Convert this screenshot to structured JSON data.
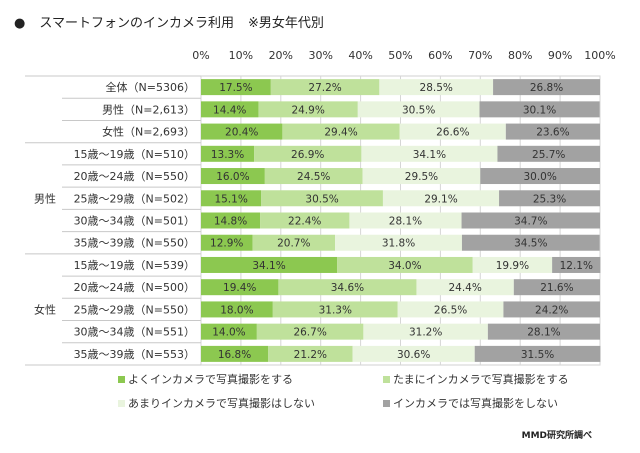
{
  "chart_data": {
    "type": "bar",
    "orientation": "horizontal",
    "stacked": true,
    "percent": true,
    "title": "スマートフォンのインカメラ利用",
    "subtitle": "※男女年代別",
    "title_bullet": "●",
    "xlim": [
      0,
      100
    ],
    "ticks": [
      "0%",
      "10%",
      "20%",
      "30%",
      "40%",
      "50%",
      "60%",
      "70%",
      "80%",
      "90%",
      "100%"
    ],
    "grid": true,
    "legend_placement": "bottom",
    "groups": [
      {
        "label": "",
        "rows": [
          0,
          1,
          2
        ]
      },
      {
        "label": "男性",
        "rows": [
          3,
          4,
          5,
          6,
          7
        ]
      },
      {
        "label": "女性",
        "rows": [
          8,
          9,
          10,
          11,
          12
        ]
      }
    ],
    "categories": [
      "全体（N=5306）",
      "男性（N=2,613）",
      "女性（N=2,693）",
      "15歳～19歳（N=510）",
      "20歳～24歳（N=550）",
      "25歳～29歳（N=502）",
      "30歳～34歳（N=501）",
      "35歳～39歳（N=550）",
      "15歳～19歳（N=539）",
      "20歳～24歳（N=500）",
      "25歳～29歳（N=550）",
      "30歳～34歳（N=551）",
      "35歳～39歳（N=553）"
    ],
    "series": [
      {
        "name": "よくインカメラで写真撮影をする",
        "color": "#8cc850",
        "values": [
          17.5,
          14.4,
          20.4,
          13.3,
          16.0,
          15.1,
          14.8,
          12.9,
          34.1,
          19.4,
          18.0,
          14.0,
          16.8
        ]
      },
      {
        "name": "たまにインカメラで写真撮影をする",
        "color": "#bfe19b",
        "values": [
          27.2,
          24.9,
          29.4,
          26.9,
          24.5,
          30.5,
          22.4,
          20.7,
          34.0,
          34.6,
          31.3,
          26.7,
          21.2
        ]
      },
      {
        "name": "あまりインカメラで写真撮影はしない",
        "color": "#e9f4de",
        "values": [
          28.5,
          30.5,
          26.6,
          34.1,
          29.5,
          29.1,
          28.1,
          31.8,
          19.9,
          24.4,
          26.5,
          31.2,
          30.6
        ]
      },
      {
        "name": "インカメラでは写真撮影をしない",
        "color": "#a2a2a2",
        "values": [
          26.8,
          30.1,
          23.6,
          25.7,
          30.0,
          25.3,
          34.7,
          34.5,
          12.1,
          21.6,
          24.2,
          28.1,
          31.5
        ]
      }
    ],
    "source": "MMD研究所調べ"
  }
}
